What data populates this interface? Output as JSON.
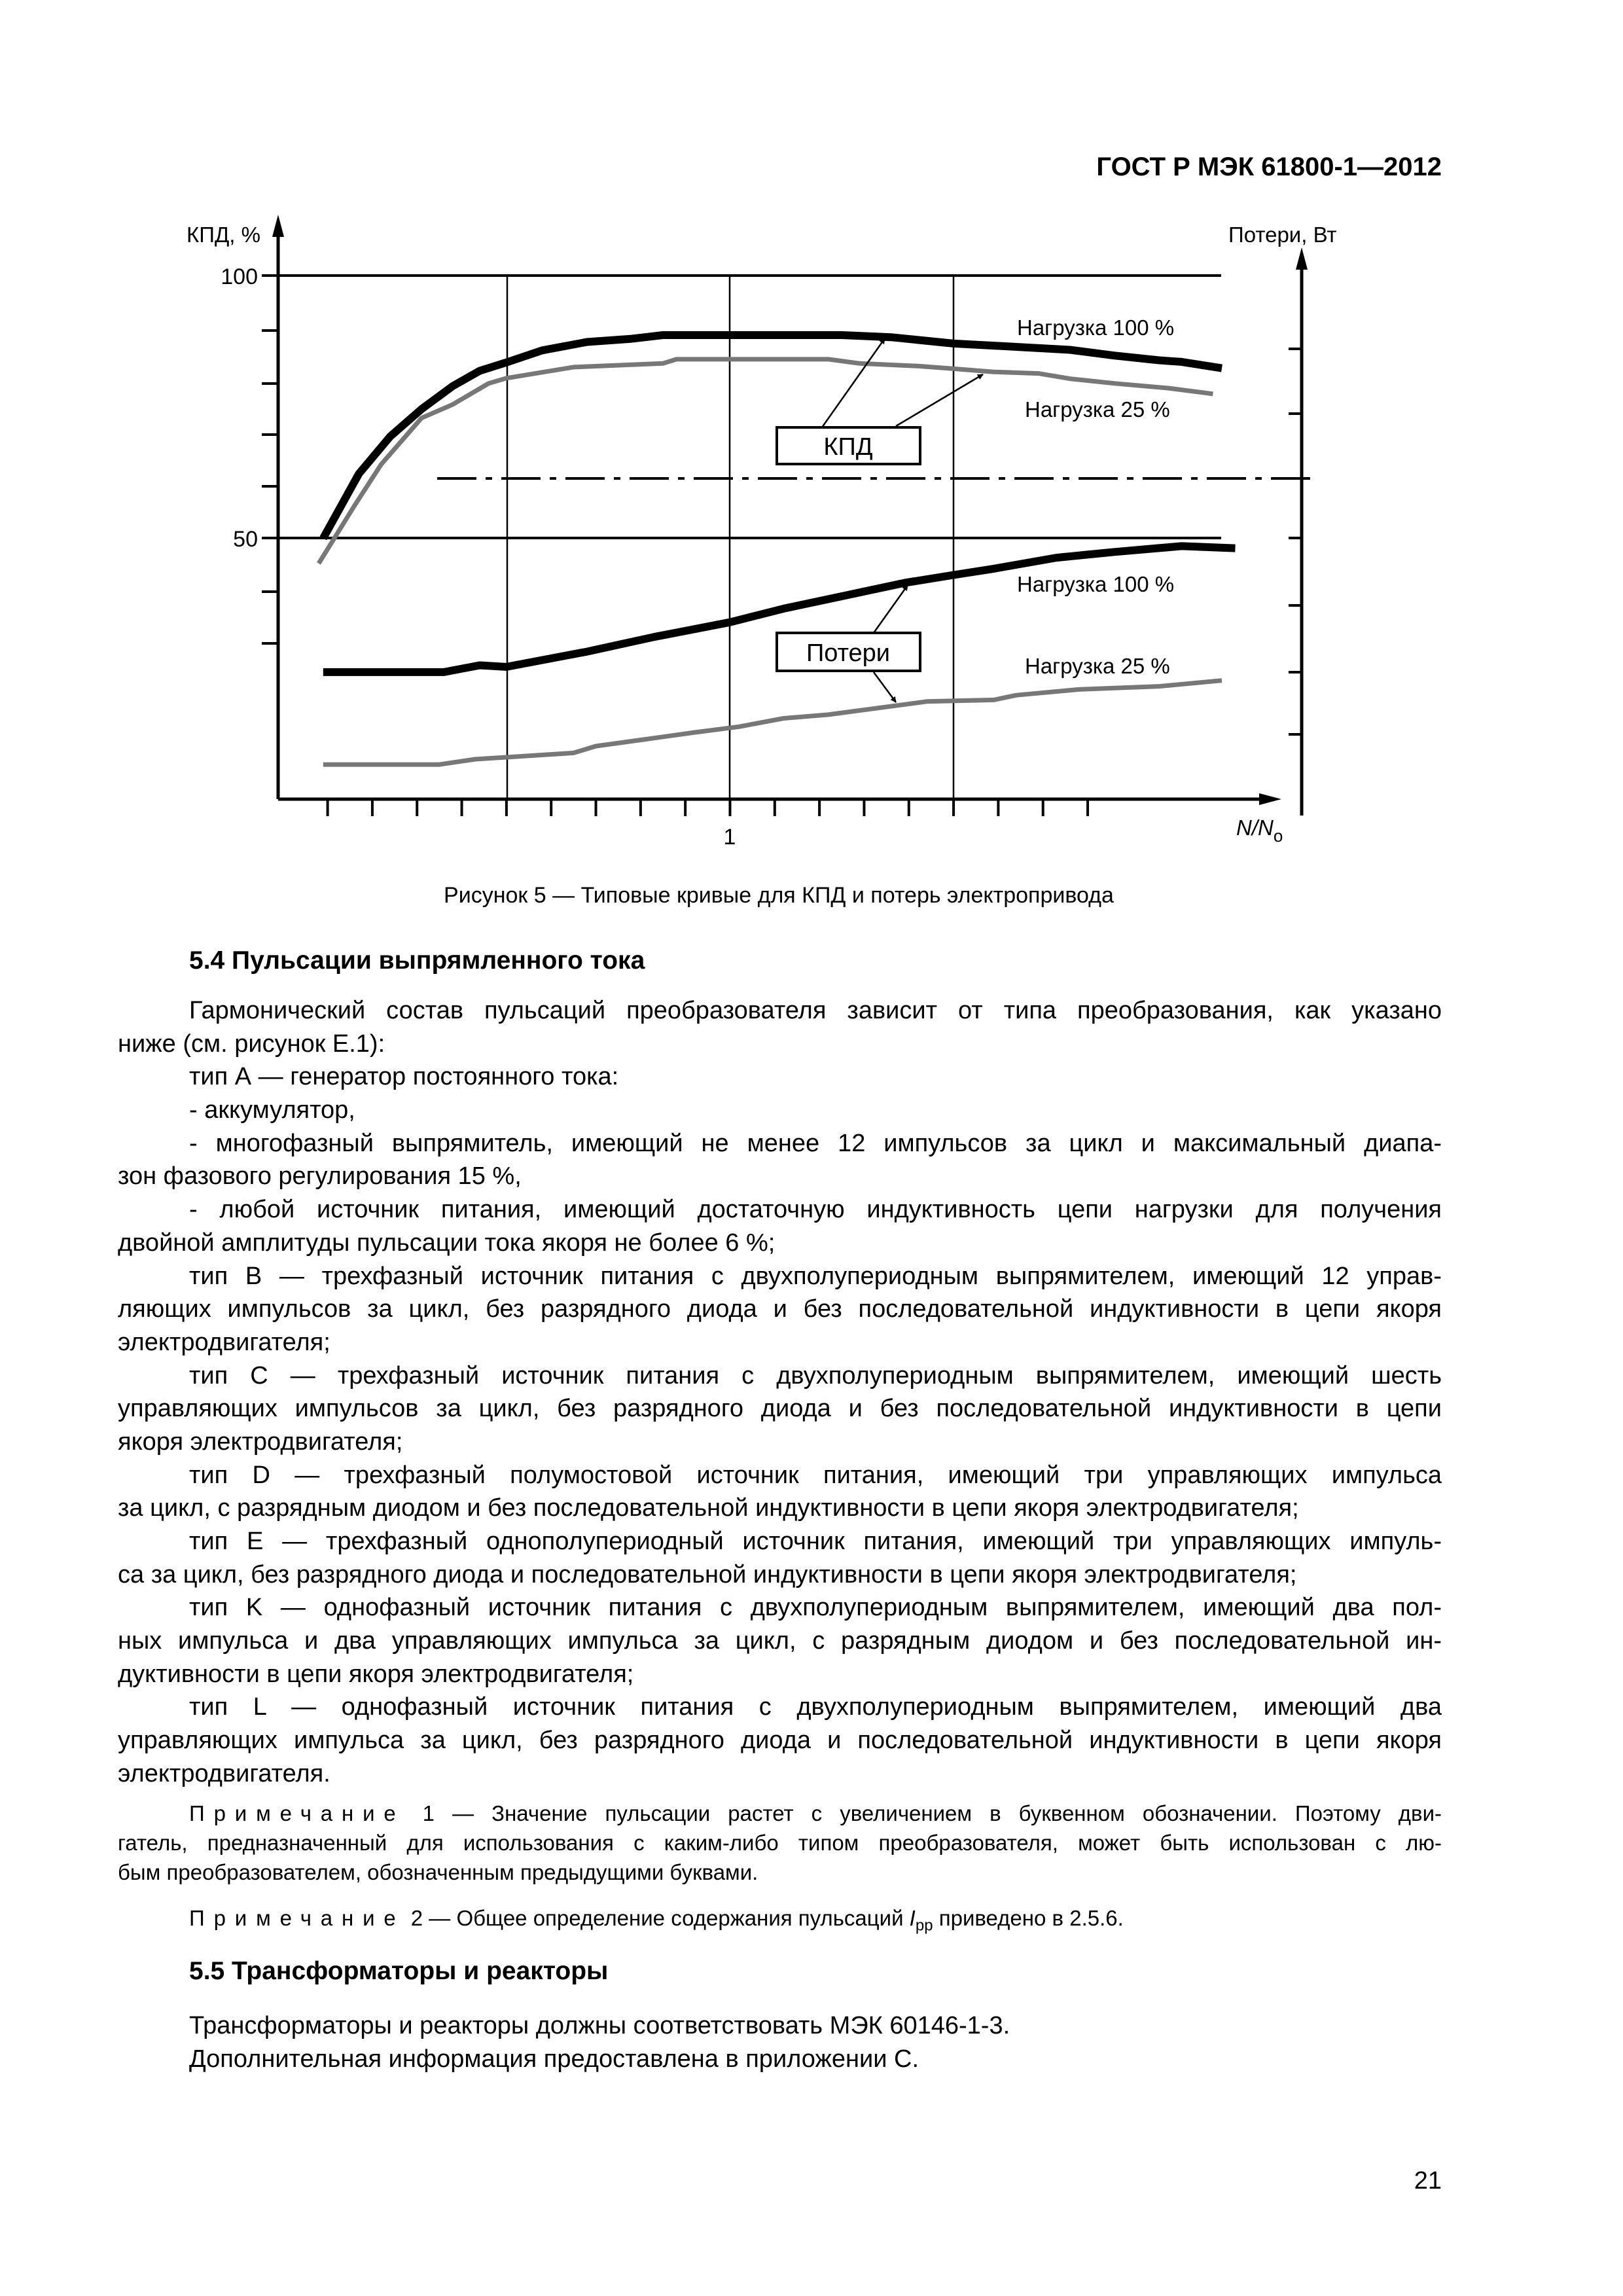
{
  "header": {
    "doc_id": "ГОСТ Р МЭК 61800-1—2012"
  },
  "figure": {
    "caption": "Рисунок 5 — Типовые кривые для КПД и потерь электропривода",
    "chart_data": {
      "type": "line",
      "ylabel": "КПД, %",
      "y2label": "Потери, Вт",
      "xlabel_main": "N/N",
      "xlabel_sub": "o",
      "ytick_labels": [
        "100",
        "50"
      ],
      "xtick_label": "1",
      "ylim": [
        0,
        100
      ],
      "grid": "on",
      "box_labels": {
        "efficiency": "КПД",
        "losses": "Потери"
      },
      "series": [
        {
          "group": "КПД",
          "name": "Нагрузка 100 %",
          "color": "#000000",
          "x": [
            0.09,
            0.17,
            0.24,
            0.31,
            0.38,
            0.44,
            0.5,
            0.58,
            0.68,
            0.78,
            0.85,
            1.0,
            1.25,
            1.36,
            1.5,
            1.59,
            1.76,
            1.86,
            1.96,
            2.01,
            2.1
          ],
          "y": [
            50,
            62.3,
            69.4,
            74.6,
            79.0,
            81.9,
            83.5,
            85.8,
            87.4,
            88.0,
            88.7,
            88.7,
            88.7,
            88.3,
            87.1,
            86.7,
            85.9,
            84.8,
            83.9,
            83.6,
            82.4
          ]
        },
        {
          "group": "КПД",
          "name": "Нагрузка 25 %",
          "color": "#777777",
          "x": [
            0.08,
            0.16,
            0.22,
            0.31,
            0.38,
            0.46,
            0.5,
            0.65,
            0.85,
            0.88,
            1.22,
            1.29,
            1.42,
            1.5,
            1.59,
            1.69,
            1.76,
            1.86,
            1.98,
            2.08
          ],
          "y": [
            45.2,
            56.2,
            64.1,
            72.9,
            75.5,
            79.5,
            80.5,
            82.6,
            83.3,
            84.1,
            84.1,
            83.3,
            82.8,
            82.3,
            81.7,
            81.4,
            80.4,
            79.5,
            78.6,
            77.5
          ]
        },
        {
          "group": "Потери",
          "name": "Нагрузка 100 %",
          "color": "#000000",
          "x": [
            0.09,
            0.36,
            0.44,
            0.5,
            0.58,
            0.68,
            0.83,
            1.0,
            1.12,
            1.22,
            1.39,
            1.5,
            1.59,
            1.73,
            1.86,
            2.01,
            2.13
          ],
          "y": [
            24.5,
            24.5,
            25.8,
            25.5,
            26.8,
            28.4,
            31.2,
            34.0,
            36.6,
            38.4,
            41.5,
            43.0,
            44.2,
            46.3,
            47.4,
            48.5,
            48.1
          ]
        },
        {
          "group": "Потери",
          "name": "Нагрузка 25 %",
          "color": "#777777",
          "x": [
            0.09,
            0.35,
            0.43,
            0.65,
            0.7,
            0.81,
            0.92,
            1.02,
            1.12,
            1.22,
            1.44,
            1.59,
            1.64,
            1.78,
            1.96,
            2.1
          ],
          "y": [
            6.9,
            6.9,
            7.9,
            9.1,
            10.4,
            11.7,
            13.0,
            14.1,
            15.7,
            16.4,
            18.9,
            19.2,
            20.1,
            21.2,
            21.8,
            22.9
          ]
        }
      ]
    }
  },
  "section_5_4": {
    "heading": "5.4  Пульсации выпрямленного тока",
    "paragraphs": [
      [
        "Гармонический состав пульсаций преобразователя зависит от типа преобразования, как указано",
        "ниже (см. рисунок Е.1):"
      ],
      [
        "тип А — генератор постоянного тока:"
      ],
      [
        "- аккумулятор,"
      ],
      [
        "- многофазный выпрямитель, имеющий не менее 12 импульсов за цикл и максимальный диапа-",
        "зон фазового регулирования 15 %,"
      ],
      [
        "- любой источник питания, имеющий достаточную индуктивность цепи нагрузки для получения",
        "двойной амплитуды пульсации тока якоря не более 6 %;"
      ],
      [
        "тип В — трехфазный источник питания с двухполупериодным выпрямителем, имеющий 12 управ-",
        "ляющих импульсов за цикл, без разрядного диода и без последовательной индуктивности в цепи якоря",
        "электродвигателя;"
      ],
      [
        "тип С — трехфазный источник питания с двухполупериодным выпрямителем, имеющий шесть",
        "управляющих импульсов за цикл, без разрядного диода и без последовательной индуктивности в цепи",
        "якоря электродвигателя;"
      ],
      [
        "тип D — трехфазный полумостовой источник питания, имеющий три управляющих импульса",
        "за цикл, с разрядным диодом и без последовательной индуктивности в цепи якоря электродвигателя;"
      ],
      [
        "тип E — трехфазный однополупериодный источник питания, имеющий три управляющих импуль-",
        "са за цикл, без разрядного диода и последовательной индуктивности в цепи якоря электродвигателя;"
      ],
      [
        "тип K — однофазный источник питания с двухполупериодным выпрямителем, имеющий два пол-",
        "ных импульса и два управляющих импульса за цикл, с разрядным диодом и без последовательной ин-",
        "дуктивности в цепи якоря электродвигателя;"
      ],
      [
        "тип L — однофазный источник питания с двухполупериодным выпрямителем, имеющий два",
        "управляющих импульса за цикл, без разрядного диода и последовательной индуктивности в цепи якоря",
        "электродвигателя."
      ]
    ],
    "note1": {
      "label": "Примечание",
      "number": "1",
      "lines": [
        "— Значение пульсации растет с увеличением в буквенном обозначении. Поэтому дви-",
        "гатель, предназначенный для использования с каким-либо типом преобразователя, может быть использован с лю-",
        "бым преобразователем, обозначенным предыдущими буквами."
      ]
    },
    "note2": {
      "label": "Примечание",
      "number": "2",
      "text_before": " — Общее определение содержания пульсаций ",
      "symbol": "I",
      "symbol_sub": "pp",
      "text_after": " приведено в 2.5.6."
    }
  },
  "section_5_5": {
    "heading": "5.5  Трансформаторы и реакторы",
    "paragraphs": [
      [
        "Трансформаторы и реакторы должны соответствовать МЭК 60146-1-3."
      ],
      [
        "Дополнительная информация предоставлена в приложении С."
      ]
    ]
  },
  "page_number": "21"
}
